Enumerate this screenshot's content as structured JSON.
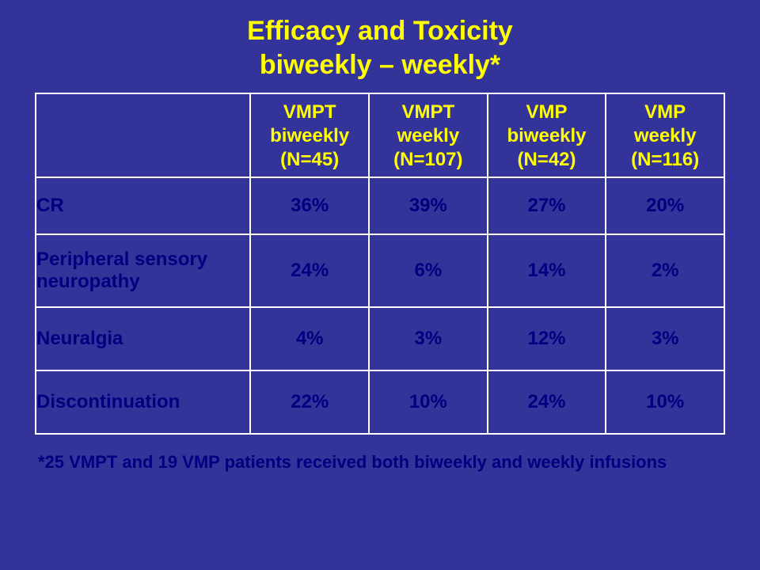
{
  "slide": {
    "title_line1": "Efficacy and Toxicity",
    "title_line2": "biweekly – weekly*",
    "background_color": "#333399",
    "title_color": "#ffff00",
    "cell_text_color": "#000080",
    "border_color": "#ffffff",
    "table": {
      "columns": [
        {
          "group": "VMPT",
          "schedule": "biweekly",
          "n": "(N=45)"
        },
        {
          "group": "VMPT",
          "schedule": "weekly",
          "n": "(N=107)"
        },
        {
          "group": "VMP",
          "schedule": "biweekly",
          "n": "(N=42)"
        },
        {
          "group": "VMP",
          "schedule": "weekly",
          "n": "(N=116)"
        }
      ],
      "rows": [
        {
          "label": "CR",
          "values": [
            "36%",
            "39%",
            "27%",
            "20%"
          ]
        },
        {
          "label": "Peripheral sensory neuropathy",
          "values": [
            "24%",
            "6%",
            "14%",
            "2%"
          ]
        },
        {
          "label": "Neuralgia",
          "values": [
            "4%",
            "3%",
            "12%",
            "3%"
          ]
        },
        {
          "label": "Discontinuation",
          "values": [
            "22%",
            "10%",
            "24%",
            "10%"
          ]
        }
      ]
    },
    "footnote": "*25 VMPT and 19 VMP patients received both biweekly and weekly infusions"
  }
}
